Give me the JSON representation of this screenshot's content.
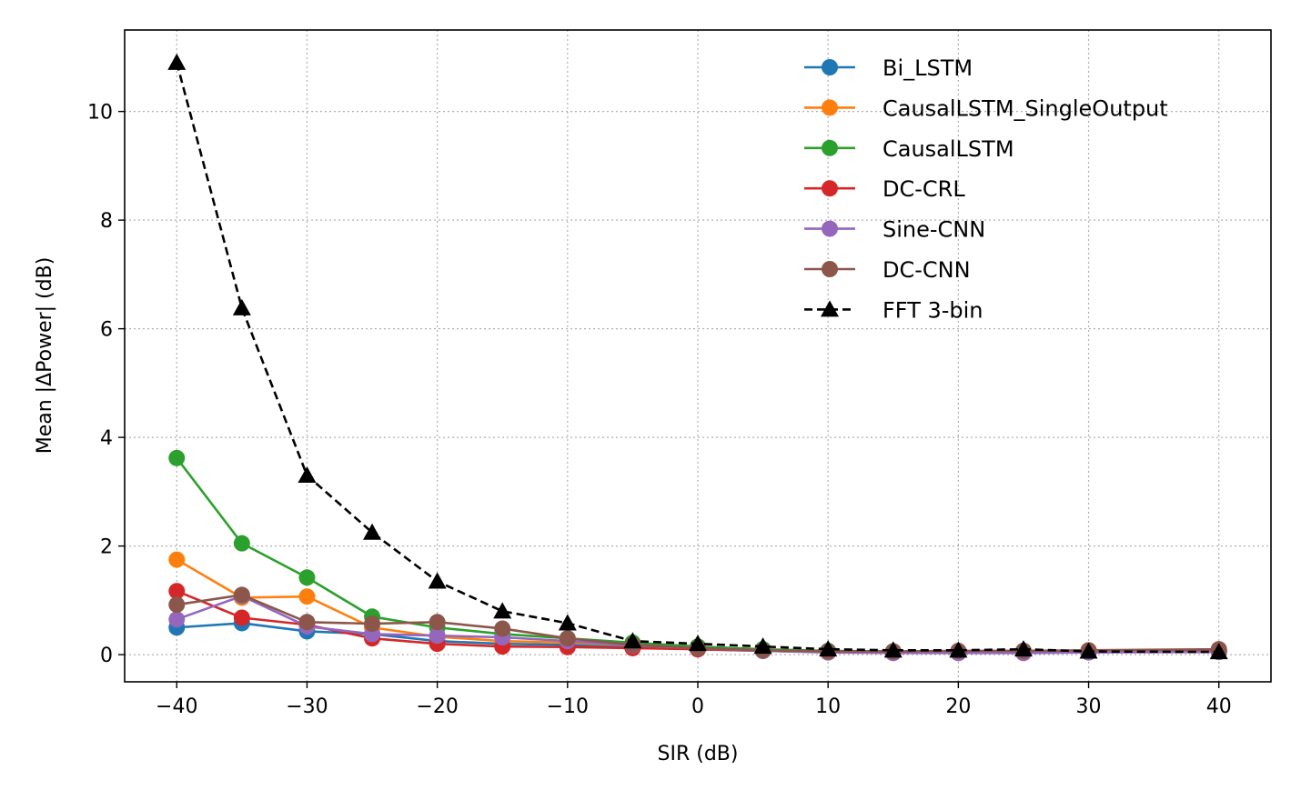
{
  "chart_data": {
    "type": "line",
    "title": "",
    "xlabel": "SIR (dB)",
    "ylabel": "Mean |ΔPower| (dB)",
    "x": [
      -40,
      -35,
      -30,
      -25,
      -20,
      -15,
      -10,
      -5,
      0,
      5,
      10,
      15,
      20,
      25,
      30,
      40
    ],
    "xlim": [
      -44,
      44
    ],
    "ylim": [
      -0.5,
      11.5
    ],
    "xticks": [
      -40,
      -30,
      -20,
      -10,
      0,
      10,
      20,
      30,
      40
    ],
    "xtick_labels": [
      "−40",
      "−30",
      "−20",
      "−10",
      "0",
      "10",
      "20",
      "30",
      "40"
    ],
    "yticks": [
      0,
      2,
      4,
      6,
      8,
      10
    ],
    "ytick_labels": [
      "0",
      "2",
      "4",
      "6",
      "8",
      "10"
    ],
    "grid": true,
    "legend_position": "top-right",
    "series": [
      {
        "name": "Bi_LSTM",
        "color": "#1f77b4",
        "marker": "circle",
        "linestyle": "solid",
        "values": [
          0.5,
          0.58,
          0.43,
          0.38,
          0.25,
          0.2,
          0.18,
          0.15,
          0.1,
          0.07,
          0.05,
          0.04,
          0.04,
          0.04,
          0.05,
          0.05
        ]
      },
      {
        "name": "CausalLSTM_SingleOutput",
        "color": "#ff7f0e",
        "marker": "circle",
        "linestyle": "solid",
        "values": [
          1.75,
          1.05,
          1.07,
          0.5,
          0.33,
          0.25,
          0.22,
          0.17,
          0.12,
          0.08,
          0.06,
          0.05,
          0.05,
          0.05,
          0.06,
          0.07
        ]
      },
      {
        "name": "CausalLSTM",
        "color": "#2ca02c",
        "marker": "circle",
        "linestyle": "solid",
        "values": [
          3.62,
          2.05,
          1.42,
          0.7,
          0.5,
          0.38,
          0.3,
          0.22,
          0.15,
          0.1,
          0.07,
          0.06,
          0.06,
          0.07,
          0.07,
          0.08
        ]
      },
      {
        "name": "DC-CRL",
        "color": "#d62728",
        "marker": "circle",
        "linestyle": "solid",
        "values": [
          1.17,
          0.68,
          0.55,
          0.3,
          0.2,
          0.15,
          0.14,
          0.12,
          0.1,
          0.07,
          0.05,
          0.04,
          0.04,
          0.04,
          0.05,
          0.06
        ]
      },
      {
        "name": "Sine-CNN",
        "color": "#9467bd",
        "marker": "circle",
        "linestyle": "solid",
        "values": [
          0.65,
          1.08,
          0.52,
          0.38,
          0.35,
          0.32,
          0.25,
          0.17,
          0.12,
          0.07,
          0.04,
          0.03,
          0.03,
          0.03,
          0.04,
          0.05
        ]
      },
      {
        "name": "DC-CNN",
        "color": "#8c564b",
        "marker": "circle",
        "linestyle": "solid",
        "values": [
          0.92,
          1.1,
          0.6,
          0.57,
          0.6,
          0.48,
          0.3,
          0.18,
          0.12,
          0.08,
          0.06,
          0.06,
          0.07,
          0.07,
          0.08,
          0.1
        ]
      },
      {
        "name": "FFT 3-bin",
        "color": "#000000",
        "marker": "triangle",
        "linestyle": "dashed",
        "values": [
          10.9,
          6.38,
          3.3,
          2.25,
          1.35,
          0.8,
          0.58,
          0.25,
          0.2,
          0.15,
          0.1,
          0.08,
          0.08,
          0.1,
          0.06,
          0.05
        ]
      }
    ]
  }
}
